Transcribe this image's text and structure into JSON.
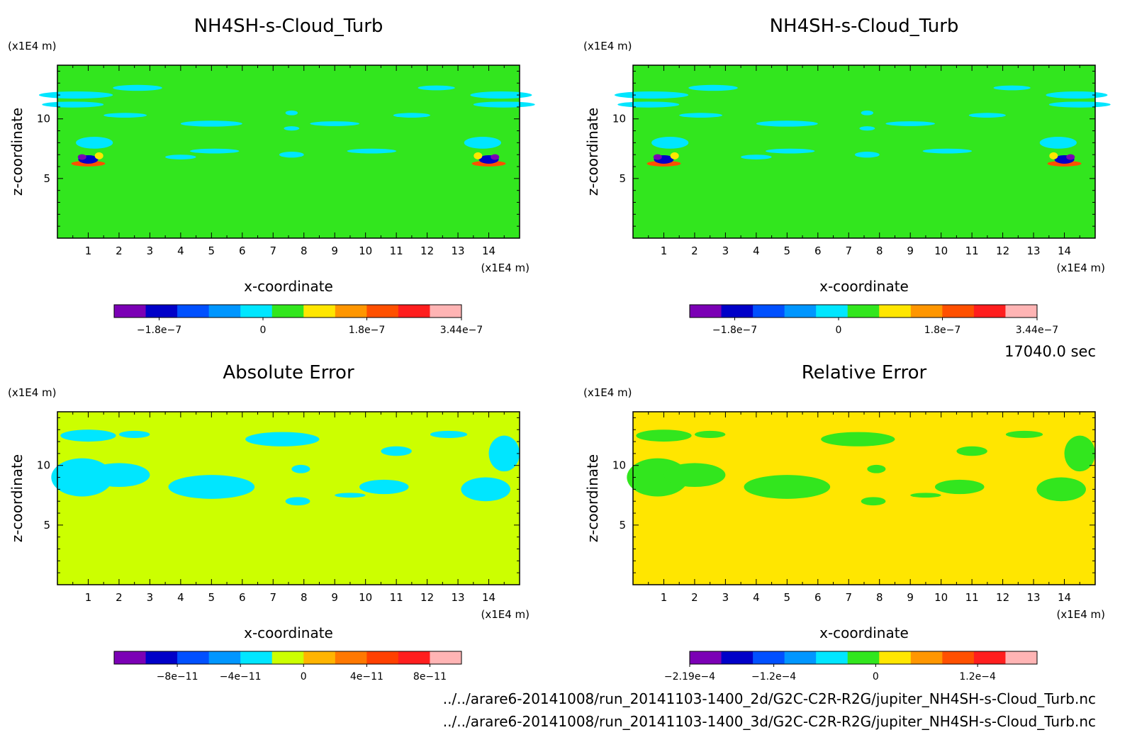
{
  "colors": {
    "scale": [
      "#7b00b5",
      "#0000c8",
      "#0050ff",
      "#0096ff",
      "#00e6ff",
      "#32e61e",
      "#ffe600",
      "#ff9600",
      "#ff5000",
      "#ff1e1e",
      "#ffb4b4"
    ],
    "abs_scale": [
      "#7b00b5",
      "#0000c8",
      "#0050ff",
      "#0096ff",
      "#00e6ff",
      "#ccff00",
      "#ffb400",
      "#ff7800",
      "#ff4000",
      "#ff1e1e",
      "#ffb4b4"
    ],
    "rel_scale": [
      "#7b00b5",
      "#0000c8",
      "#0050ff",
      "#0096ff",
      "#00e6ff",
      "#32e61e",
      "#ffe600",
      "#ff9600",
      "#ff5000",
      "#ff1e1e",
      "#ffb4b4"
    ]
  },
  "footer": {
    "time_label": "17040.0 sec",
    "file_2d": "../../arare6-20141008/run_20141103-1400_2d/G2C-C2R-R2G/jupiter_NH4SH-s-Cloud_Turb.nc",
    "file_3d": "../../arare6-20141008/run_20141103-1400_3d/G2C-C2R-R2G/jupiter_NH4SH-s-Cloud_Turb.nc"
  },
  "chart_data": [
    {
      "type": "heatmap",
      "title": "NH4SH-s-Cloud_Turb",
      "xlabel": "x-coordinate",
      "ylabel": "z-coordinate",
      "xunit": "(x1E4 m)",
      "yunit": "(x1E4 m)",
      "xlim": [
        0,
        15
      ],
      "ylim": [
        0,
        14.5
      ],
      "xticks": [
        "1",
        "2",
        "3",
        "4",
        "5",
        "6",
        "7",
        "8",
        "9",
        "10",
        "11",
        "12",
        "13",
        "14"
      ],
      "yticks": [
        "5",
        "10"
      ],
      "field": "background near 0 with small negative patches around z = 8 to 12 and a localized dipole near x = 1 and x = 14 at z = 6.5",
      "colorbar": {
        "labels": [
          "−1.8e−7",
          "0",
          "1.8e−7",
          "3.44e−7"
        ],
        "range": [
          -2.58e-07,
          3.44e-07
        ],
        "levels": 11
      },
      "scale": "scale"
    },
    {
      "type": "heatmap",
      "title": "NH4SH-s-Cloud_Turb",
      "xlabel": "x-coordinate",
      "ylabel": "z-coordinate",
      "xunit": "(x1E4 m)",
      "yunit": "(x1E4 m)",
      "xlim": [
        0,
        15
      ],
      "ylim": [
        0,
        14.5
      ],
      "xticks": [
        "1",
        "2",
        "3",
        "4",
        "5",
        "6",
        "7",
        "8",
        "9",
        "10",
        "11",
        "12",
        "13",
        "14"
      ],
      "yticks": [
        "5",
        "10"
      ],
      "colorbar": {
        "labels": [
          "−1.8e−7",
          "0",
          "1.8e−7",
          "3.44e−7"
        ],
        "range": [
          -2.58e-07,
          3.44e-07
        ],
        "levels": 11
      },
      "scale": "scale"
    },
    {
      "type": "heatmap",
      "title": "Absolute Error",
      "xlabel": "x-coordinate",
      "ylabel": "z-coordinate",
      "xunit": "(x1E4 m)",
      "yunit": "(x1E4 m)",
      "xlim": [
        0,
        15
      ],
      "ylim": [
        0,
        14.5
      ],
      "xticks": [
        "1",
        "2",
        "3",
        "4",
        "5",
        "6",
        "7",
        "8",
        "9",
        "10",
        "11",
        "12",
        "13",
        "14"
      ],
      "yticks": [
        "5",
        "10"
      ],
      "colorbar": {
        "labels": [
          "−8e−11",
          "−4e−11",
          "0",
          "4e−11",
          "8e−11"
        ],
        "range": [
          -1.2e-10,
          1e-10
        ],
        "levels": 11
      },
      "scale": "abs_scale"
    },
    {
      "type": "heatmap",
      "title": "Relative Error",
      "xlabel": "x-coordinate",
      "ylabel": "z-coordinate",
      "xunit": "(x1E4 m)",
      "yunit": "(x1E4 m)",
      "xlim": [
        0,
        15
      ],
      "ylim": [
        0,
        14.5
      ],
      "xticks": [
        "1",
        "2",
        "3",
        "4",
        "5",
        "6",
        "7",
        "8",
        "9",
        "10",
        "11",
        "12",
        "13",
        "14"
      ],
      "yticks": [
        "5",
        "10"
      ],
      "colorbar": {
        "labels": [
          "−2.19e−4",
          "−1.2e−4",
          "0",
          "1.2e−4"
        ],
        "range": [
          -0.000219,
          0.00019
        ],
        "levels": 11
      },
      "scale": "rel_scale"
    }
  ]
}
